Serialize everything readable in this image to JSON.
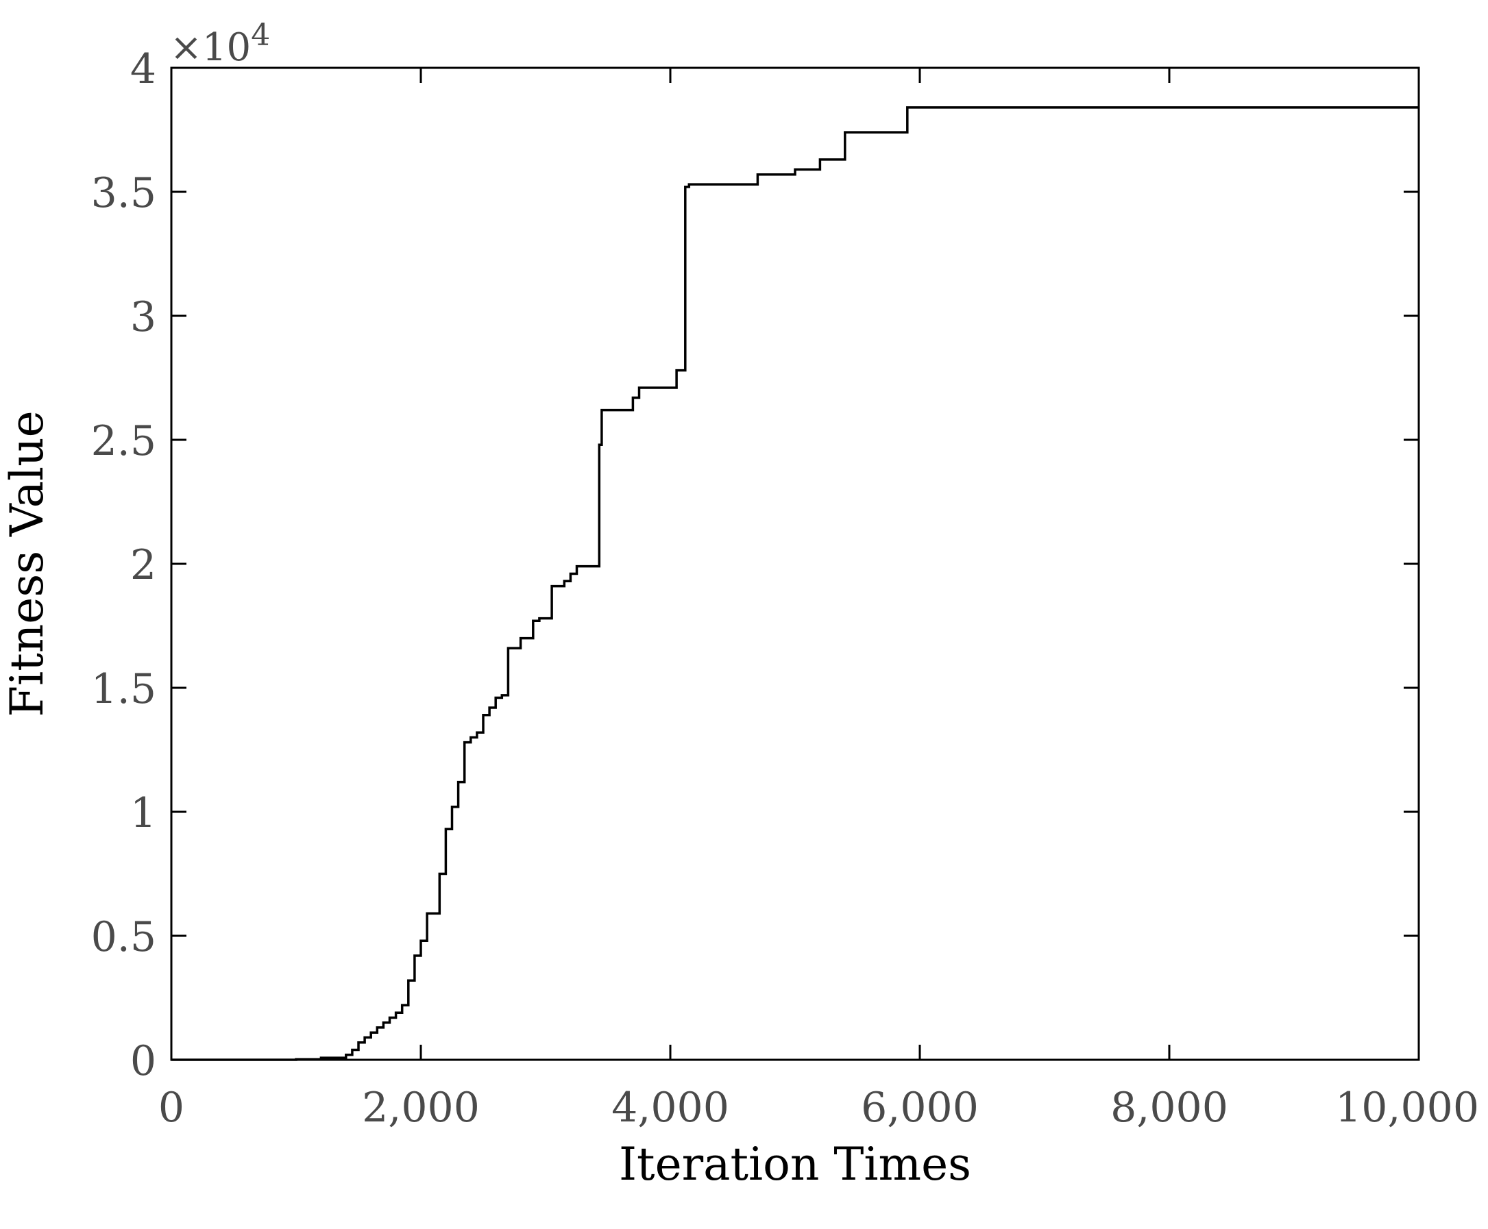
{
  "chart_data": {
    "type": "line",
    "line_style": "step",
    "xlabel": "Iteration Times",
    "ylabel": "Fitness Value",
    "xlim": [
      0,
      10000
    ],
    "ylim": [
      0,
      40000
    ],
    "y_exponent": {
      "times": "×10",
      "power": "4"
    },
    "x_ticks": [
      {
        "value": 0,
        "label": "0"
      },
      {
        "value": 2000,
        "label": "2,000"
      },
      {
        "value": 4000,
        "label": "4,000"
      },
      {
        "value": 6000,
        "label": "6,000"
      },
      {
        "value": 8000,
        "label": "8,000"
      },
      {
        "value": 10000,
        "label": "10,000"
      }
    ],
    "y_ticks": [
      {
        "value": 0,
        "label": "0"
      },
      {
        "value": 5000,
        "label": "0.5"
      },
      {
        "value": 10000,
        "label": "1"
      },
      {
        "value": 15000,
        "label": "1.5"
      },
      {
        "value": 20000,
        "label": "2"
      },
      {
        "value": 25000,
        "label": "2.5"
      },
      {
        "value": 30000,
        "label": "3"
      },
      {
        "value": 35000,
        "label": "3.5"
      },
      {
        "value": 40000,
        "label": "4"
      }
    ],
    "grid": false,
    "line_color": "#000000",
    "series": [
      {
        "x": [
          0,
          1000,
          1200,
          1400,
          1450,
          1500,
          1550,
          1600,
          1650,
          1700,
          1750,
          1800,
          1850,
          1900,
          1950,
          2000,
          2050,
          2100,
          2150,
          2200,
          2250,
          2300,
          2350,
          2400,
          2450,
          2500,
          2550,
          2600,
          2650,
          2700,
          2800,
          2900,
          2950,
          3050,
          3150,
          3200,
          3250,
          3430,
          3450,
          3500,
          3700,
          3750,
          3830,
          4050,
          4120,
          4150,
          4300,
          4700,
          5000,
          5200,
          5400,
          5870,
          5900,
          10000
        ],
        "y": [
          0,
          20,
          80,
          200,
          400,
          700,
          900,
          1100,
          1300,
          1500,
          1700,
          1900,
          2200,
          3200,
          4200,
          4800,
          5900,
          5900,
          7500,
          9300,
          10200,
          11200,
          12800,
          13000,
          13200,
          13900,
          14200,
          14600,
          14700,
          16600,
          17000,
          17700,
          17800,
          19100,
          19300,
          19600,
          19900,
          24800,
          26200,
          26200,
          26700,
          27100,
          27100,
          27800,
          35200,
          35300,
          35300,
          35700,
          35900,
          36300,
          37400,
          37400,
          38400,
          38400
        ]
      }
    ]
  }
}
